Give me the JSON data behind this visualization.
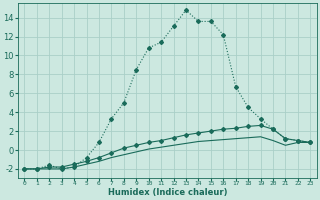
{
  "background_color": "#cce8e0",
  "grid_color": "#aacfc8",
  "line_color": "#1a6b5a",
  "xlabel": "Humidex (Indice chaleur)",
  "xlim": [
    -0.5,
    23.5
  ],
  "ylim": [
    -3.0,
    15.5
  ],
  "yticks": [
    -2,
    0,
    2,
    4,
    6,
    8,
    10,
    12,
    14
  ],
  "xticks": [
    0,
    1,
    2,
    3,
    4,
    5,
    6,
    7,
    8,
    9,
    10,
    11,
    12,
    13,
    14,
    15,
    16,
    17,
    18,
    19,
    20,
    21,
    22,
    23
  ],
  "line1_x": [
    0,
    1,
    2,
    3,
    4,
    5,
    6,
    7,
    8,
    9,
    10,
    11,
    12,
    13,
    14,
    15,
    16,
    17,
    18,
    19,
    20,
    21,
    22,
    23
  ],
  "line1_y": [
    -2,
    -2,
    -1.6,
    -2,
    -1.8,
    -0.8,
    0.8,
    3.3,
    5.0,
    8.5,
    10.8,
    11.4,
    13.1,
    14.8,
    13.6,
    13.6,
    12.2,
    6.7,
    4.5,
    3.3,
    2.2,
    1.2,
    1.0,
    0.8
  ],
  "line2_x": [
    0,
    1,
    2,
    3,
    4,
    5,
    6,
    7,
    8,
    9,
    10,
    11,
    12,
    13,
    14,
    15,
    16,
    17,
    18,
    19,
    20,
    21,
    22,
    23
  ],
  "line2_y": [
    -2,
    -2,
    -1.8,
    -1.8,
    -1.5,
    -1.2,
    -0.8,
    -0.3,
    0.2,
    0.5,
    0.8,
    1.0,
    1.3,
    1.6,
    1.8,
    2.0,
    2.2,
    2.3,
    2.5,
    2.6,
    2.2,
    1.2,
    1.0,
    0.8
  ],
  "line3_x": [
    0,
    1,
    2,
    3,
    4,
    5,
    6,
    7,
    8,
    9,
    10,
    11,
    12,
    13,
    14,
    15,
    16,
    17,
    18,
    19,
    20,
    21,
    22,
    23
  ],
  "line3_y": [
    -2,
    -2,
    -2,
    -2,
    -1.8,
    -1.5,
    -1.2,
    -0.8,
    -0.5,
    -0.2,
    0.1,
    0.3,
    0.5,
    0.7,
    0.9,
    1.0,
    1.1,
    1.2,
    1.3,
    1.4,
    1.0,
    0.5,
    0.8,
    0.8
  ]
}
